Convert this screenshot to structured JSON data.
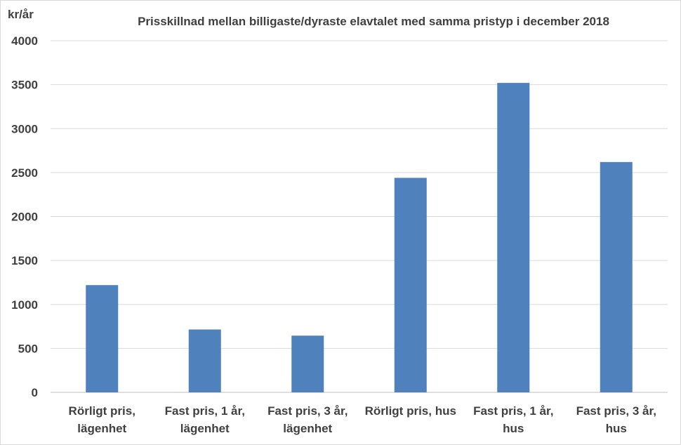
{
  "chart_data": {
    "type": "bar",
    "title": "Prisskillnad  mellan billigaste/dyraste  elavtalet med samma  pristyp  i december 2018",
    "ylabel": "kr/år",
    "xlabel": "",
    "ylim": [
      0,
      4000
    ],
    "yticks": [
      0,
      500,
      1000,
      1500,
      2000,
      2500,
      3000,
      3500,
      4000
    ],
    "grid": true,
    "legend": "none",
    "bar_color": "#4f81bd",
    "categories": [
      [
        "Rörligt pris,",
        "lägenhet"
      ],
      [
        "Fast pris, 1 år,",
        "lägenhet"
      ],
      [
        "Fast pris, 3 år,",
        "lägenhet"
      ],
      [
        "Rörligt pris, hus"
      ],
      [
        "Fast pris, 1 år,",
        "hus"
      ],
      [
        "Fast pris, 3 år,",
        "hus"
      ]
    ],
    "values": [
      1220,
      715,
      645,
      2440,
      3520,
      2620
    ]
  }
}
